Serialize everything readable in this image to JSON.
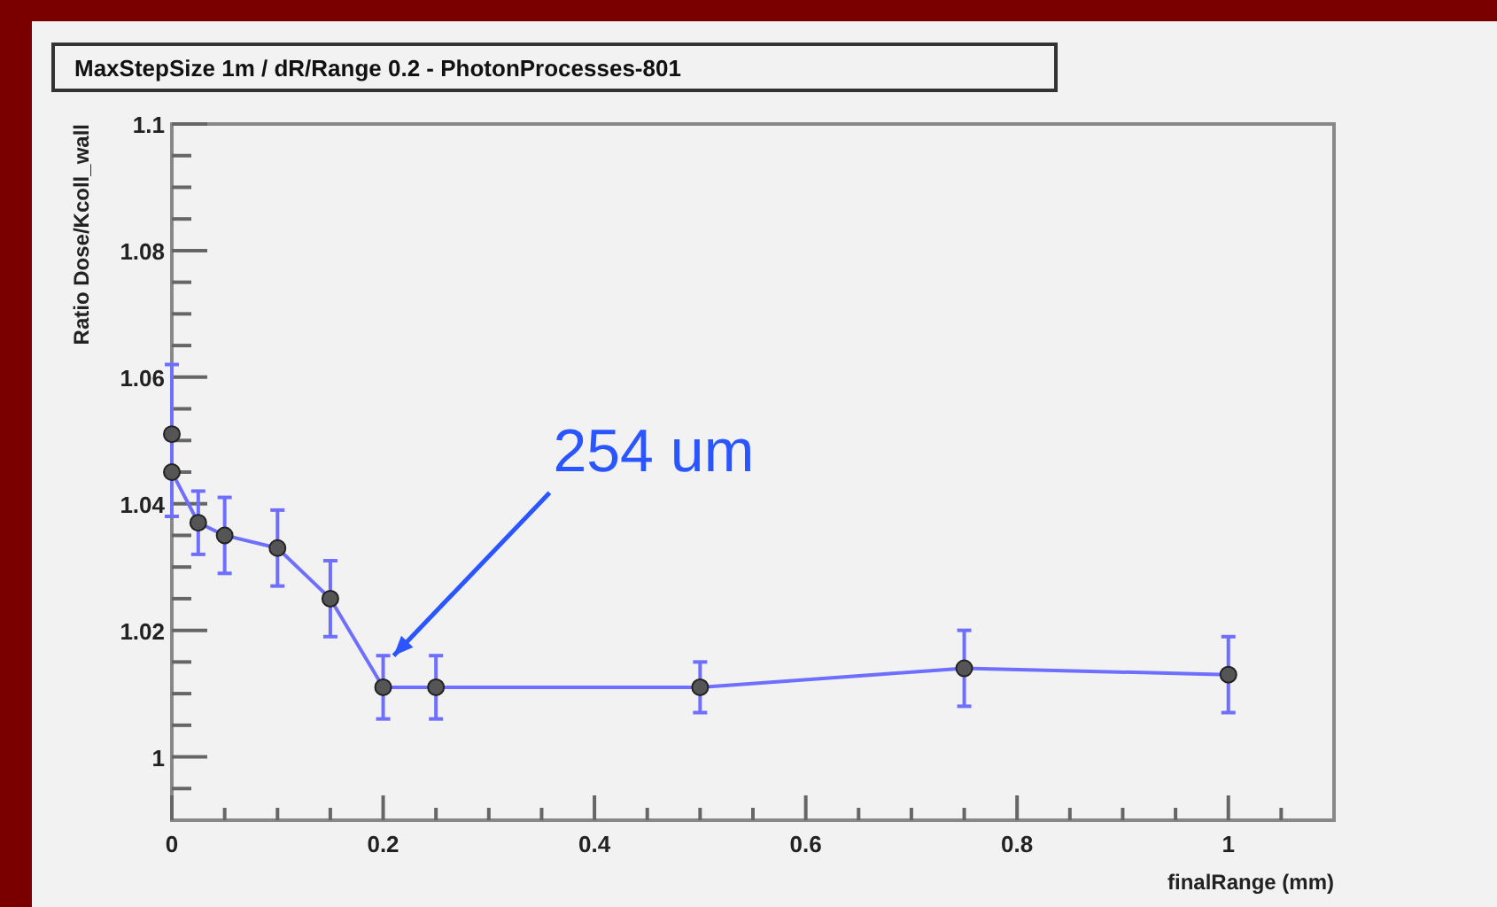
{
  "chart_data": {
    "type": "line",
    "title": "MaxStepSize 1m / dR/Range 0.2 - PhotonProcesses-801",
    "xlabel": "finalRange (mm)",
    "ylabel": "Ratio Dose/Kcoll_wall",
    "x": [
      0,
      0,
      0.025,
      0.05,
      0.1,
      0.15,
      0.2,
      0.25,
      0.5,
      0.75,
      1
    ],
    "series": [
      {
        "color": "#6e6eff",
        "values": [
          1.051,
          1.045,
          1.037,
          1.035,
          1.033,
          1.025,
          1.011,
          1.011,
          1.011,
          1.014,
          1.013
        ],
        "errors": [
          [
            1.038,
            1.062
          ],
          null,
          0.005,
          0.006,
          0.006,
          0.006,
          0.005,
          0.005,
          0.004,
          0.006,
          0.006
        ]
      }
    ],
    "marker": "circle",
    "line_style": "solid",
    "grid": false,
    "xlim": [
      0,
      1.1
    ],
    "ylim": [
      0.99,
      1.1
    ],
    "xticks": [
      0,
      {
        "value": 0.05,
        "label": null
      },
      {
        "value": 0.1,
        "label": null
      },
      {
        "value": 0.15,
        "label": null
      },
      0.2,
      {
        "value": 0.25,
        "label": null
      },
      {
        "value": 0.3,
        "label": null
      },
      {
        "value": 0.35,
        "label": null
      },
      0.4,
      {
        "value": 0.45,
        "label": null
      },
      {
        "value": 0.5,
        "label": null
      },
      {
        "value": 0.55,
        "label": null
      },
      0.6,
      {
        "value": 0.65,
        "label": null
      },
      {
        "value": 0.7,
        "label": null
      },
      {
        "value": 0.75,
        "label": null
      },
      0.8,
      {
        "value": 0.85,
        "label": null
      },
      {
        "value": 0.9,
        "label": null
      },
      {
        "value": 0.95,
        "label": null
      },
      1,
      {
        "value": 1.05,
        "label": null
      }
    ],
    "yticks": [
      {
        "value": 0.995,
        "label": null
      },
      1,
      {
        "value": 1.005,
        "label": null
      },
      {
        "value": 1.01,
        "label": null
      },
      {
        "value": 1.015,
        "label": null
      },
      1.02,
      {
        "value": 1.025,
        "label": null
      },
      {
        "value": 1.03,
        "label": null
      },
      {
        "value": 1.035,
        "label": null
      },
      1.04,
      {
        "value": 1.045,
        "label": null
      },
      {
        "value": 1.05,
        "label": null
      },
      {
        "value": 1.055,
        "label": null
      },
      1.06,
      {
        "value": 1.065,
        "label": null
      },
      {
        "value": 1.07,
        "label": null
      },
      {
        "value": 1.075,
        "label": null
      },
      1.08,
      {
        "value": 1.085,
        "label": null
      },
      {
        "value": 1.09,
        "label": null
      },
      {
        "value": 1.095,
        "label": null
      },
      1.1
    ],
    "annotations": [
      {
        "text": "254 um",
        "x": 0.21,
        "y": 1.016
      }
    ]
  }
}
